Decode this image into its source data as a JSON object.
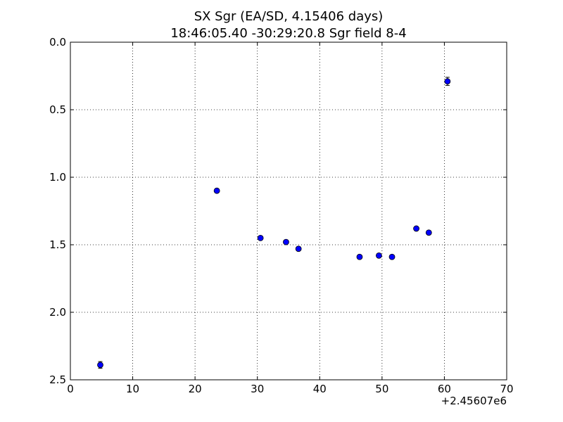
{
  "chart_data": {
    "type": "scatter",
    "title_line1": "SX Sgr  (EA/SD, 4.15406 days)",
    "title_line2": "18:46:05.40 -30:29:20.8 Sgr field 8-4",
    "xlabel": "",
    "ylabel": "",
    "x_offset_label": "+2.45607e6",
    "xlim": [
      0,
      70
    ],
    "ylim": [
      2.5,
      0.0
    ],
    "y_inverted": true,
    "x_ticks": [
      0,
      10,
      20,
      30,
      40,
      50,
      60,
      70
    ],
    "x_tick_labels": [
      "0",
      "10",
      "20",
      "30",
      "40",
      "50",
      "60",
      "70"
    ],
    "y_ticks": [
      0.0,
      0.5,
      1.0,
      1.5,
      2.0,
      2.5
    ],
    "y_tick_labels": [
      "0.0",
      "0.5",
      "1.0",
      "1.5",
      "2.0",
      "2.5"
    ],
    "grid": true,
    "marker_color": "#0000ff",
    "points": [
      {
        "x": 4.8,
        "y": 2.39,
        "err": 0.025
      },
      {
        "x": 23.5,
        "y": 1.1,
        "err": 0.015
      },
      {
        "x": 30.5,
        "y": 1.45,
        "err": 0.012
      },
      {
        "x": 34.6,
        "y": 1.48,
        "err": 0.012
      },
      {
        "x": 36.6,
        "y": 1.53,
        "err": 0.012
      },
      {
        "x": 46.4,
        "y": 1.59,
        "err": 0.012
      },
      {
        "x": 49.5,
        "y": 1.58,
        "err": 0.012
      },
      {
        "x": 51.6,
        "y": 1.59,
        "err": 0.012
      },
      {
        "x": 55.5,
        "y": 1.38,
        "err": 0.012
      },
      {
        "x": 57.5,
        "y": 1.41,
        "err": 0.012
      },
      {
        "x": 60.5,
        "y": 0.29,
        "err": 0.03
      }
    ]
  }
}
